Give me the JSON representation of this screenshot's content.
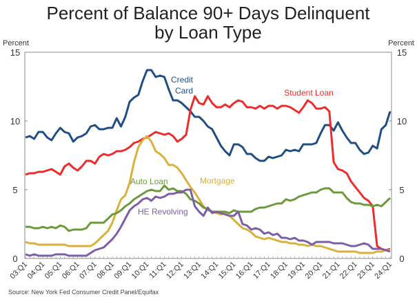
{
  "chart_data": {
    "type": "line",
    "title_line1": "Percent of Balance 90+ Days Delinquent",
    "title_line2": "by Loan Type",
    "ylabel_left": "Percent",
    "ylabel_right": "Percent",
    "ylim": [
      0,
      15
    ],
    "yticks": [
      0,
      5,
      10,
      15
    ],
    "x_start": "03:Q1",
    "x_ticklabels": [
      "03:Q1",
      "04:Q1",
      "05:Q1",
      "06:Q1",
      "07:Q1",
      "08:Q1",
      "09:Q1",
      "10:Q1",
      "11:Q1",
      "12:Q1",
      "13:Q1",
      "14:Q1",
      "15:Q1",
      "16:Q1",
      "17:Q1",
      "18:Q1",
      "19:Q1",
      "20:Q1",
      "21:Q1",
      "22:Q1",
      "23:Q1",
      "24:Q1"
    ],
    "grid": false,
    "source": "Source: New York Fed Consumer Credit Panel/Equifax",
    "series": [
      {
        "name": "Credit Card",
        "label_line1": "Credit",
        "label_line2": "Card",
        "color": "#1f4e87",
        "values": [
          8.8,
          8.9,
          8.7,
          9.2,
          9.2,
          8.8,
          8.6,
          9.1,
          9.5,
          9.2,
          9.1,
          8.5,
          8.8,
          8.9,
          9.1,
          9.6,
          9.7,
          9.4,
          9.4,
          9.5,
          9.5,
          10.2,
          9.6,
          10.3,
          11.4,
          11.7,
          11.9,
          12.9,
          13.7,
          13.7,
          13.2,
          13.3,
          13.2,
          12.3,
          11.5,
          11.5,
          11.3,
          11.0,
          10.7,
          10.3,
          10.3,
          10.0,
          9.6,
          9.4,
          8.8,
          8.2,
          7.8,
          7.5,
          8.3,
          8.3,
          8.1,
          7.6,
          7.6,
          7.3,
          7.1,
          7.1,
          7.4,
          7.3,
          7.4,
          7.5,
          7.9,
          7.8,
          7.9,
          7.8,
          8.3,
          8.3,
          8.3,
          8.4,
          9.1,
          9.7,
          9.7,
          9.3,
          9.9,
          9.3,
          8.8,
          8.4,
          8.4,
          7.9,
          7.6,
          7.7,
          8.2,
          8.0,
          9.4,
          9.7,
          10.7
        ]
      },
      {
        "name": "Student Loan",
        "label_line1": "Student Loan",
        "color": "#ee2a2a",
        "values": [
          6.1,
          6.2,
          6.2,
          6.3,
          6.3,
          6.4,
          6.5,
          6.3,
          6.1,
          6.7,
          6.9,
          6.6,
          6.4,
          6.7,
          7.1,
          7.1,
          6.9,
          7.4,
          7.6,
          7.5,
          7.6,
          7.8,
          7.8,
          7.9,
          8.1,
          8.4,
          8.5,
          8.7,
          8.8,
          9.0,
          9.2,
          9.1,
          9.0,
          9.1,
          8.9,
          8.5,
          8.7,
          9.0,
          10.8,
          11.8,
          11.3,
          11.2,
          11.8,
          11.3,
          11.0,
          11.0,
          11.2,
          11.0,
          11.3,
          11.5,
          11.4,
          11.0,
          11.0,
          10.9,
          11.1,
          10.9,
          11.1,
          11.1,
          10.9,
          11.1,
          11.1,
          11.0,
          10.8,
          10.6,
          11.0,
          11.5,
          11.3,
          10.9,
          10.9,
          11.0,
          10.7,
          7.0,
          6.5,
          6.4,
          6.2,
          5.6,
          5.2,
          4.8,
          4.4,
          4.2,
          3.8,
          0.9,
          0.7,
          0.6,
          0.7
        ]
      },
      {
        "name": "Mortgage",
        "label_line1": "Mortgage",
        "color": "#d9b03a",
        "values": [
          1.2,
          1.1,
          1.1,
          1.0,
          1.0,
          1.0,
          1.0,
          1.0,
          1.0,
          1.0,
          0.9,
          0.9,
          0.9,
          0.9,
          0.9,
          0.9,
          1.1,
          1.4,
          1.7,
          2.0,
          2.6,
          3.5,
          4.3,
          4.6,
          5.5,
          7.0,
          8.1,
          8.6,
          8.9,
          8.5,
          7.8,
          7.6,
          7.3,
          6.8,
          6.8,
          6.6,
          6.2,
          5.7,
          5.2,
          4.8,
          4.3,
          3.8,
          3.5,
          3.4,
          3.3,
          3.2,
          3.3,
          3.1,
          2.8,
          2.5,
          2.2,
          2.1,
          1.9,
          1.6,
          1.5,
          1.4,
          1.5,
          1.4,
          1.3,
          1.2,
          1.2,
          1.1,
          1.1,
          1.0,
          1.0,
          0.9,
          1.0,
          0.9,
          0.9,
          0.8,
          0.7,
          0.6,
          0.5,
          0.5,
          0.5,
          0.5,
          0.5,
          0.4,
          0.4,
          0.4,
          0.4,
          0.5,
          0.5,
          0.6,
          0.6
        ]
      },
      {
        "name": "Auto Loan",
        "label_line1": "Auto Loan",
        "color": "#6a9a3a",
        "values": [
          2.3,
          2.3,
          2.2,
          2.2,
          2.3,
          2.2,
          2.3,
          2.2,
          2.4,
          2.3,
          2.0,
          2.1,
          2.1,
          2.1,
          2.2,
          2.6,
          2.6,
          2.6,
          2.6,
          2.9,
          3.2,
          3.3,
          3.5,
          3.8,
          4.0,
          4.3,
          4.5,
          4.7,
          4.9,
          5.0,
          4.9,
          4.9,
          5.3,
          5.0,
          5.1,
          4.9,
          4.9,
          4.7,
          4.3,
          4.2,
          4.0,
          3.7,
          3.6,
          3.4,
          3.4,
          3.4,
          3.4,
          3.3,
          3.5,
          3.4,
          3.4,
          3.4,
          3.4,
          3.6,
          3.7,
          3.7,
          3.8,
          3.9,
          4.0,
          4.0,
          4.3,
          4.2,
          4.3,
          4.5,
          4.6,
          4.7,
          4.8,
          4.8,
          5.0,
          5.1,
          5.1,
          4.8,
          4.8,
          4.8,
          4.4,
          4.1,
          4.0,
          4.0,
          3.9,
          3.9,
          3.8,
          3.9,
          3.8,
          4.1,
          4.4
        ]
      },
      {
        "name": "HE Revolving",
        "label_line1": "HE Revolving",
        "color": "#7d5ca8",
        "values": [
          0.3,
          0.2,
          0.3,
          0.2,
          0.2,
          0.2,
          0.2,
          0.3,
          0.3,
          0.3,
          0.2,
          0.2,
          0.2,
          0.2,
          0.2,
          0.4,
          0.6,
          0.7,
          0.8,
          1.1,
          1.4,
          1.8,
          2.3,
          2.9,
          3.5,
          3.8,
          4.0,
          4.3,
          4.4,
          4.2,
          4.5,
          4.4,
          4.5,
          4.7,
          4.7,
          4.8,
          4.8,
          5.0,
          5.0,
          3.8,
          3.4,
          3.1,
          3.7,
          3.3,
          3.4,
          3.3,
          3.2,
          3.1,
          3.1,
          3.4,
          2.5,
          2.4,
          2.1,
          2.2,
          2.1,
          1.8,
          1.9,
          1.7,
          1.8,
          1.5,
          1.5,
          1.4,
          1.5,
          1.3,
          1.3,
          1.2,
          1.0,
          1.2,
          1.2,
          1.2,
          1.2,
          1.1,
          1.1,
          1.1,
          1.0,
          0.9,
          0.9,
          1.0,
          1.1,
          1.0,
          0.7,
          0.7,
          0.7,
          0.6,
          0.5
        ]
      }
    ]
  }
}
